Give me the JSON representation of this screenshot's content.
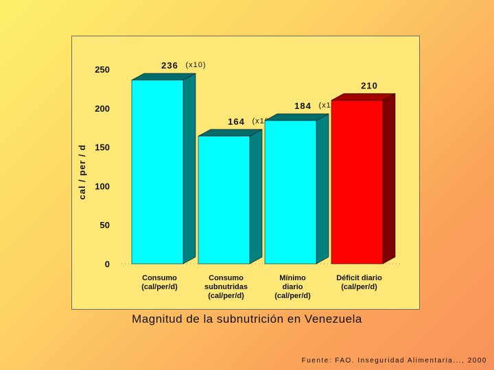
{
  "chart_data": {
    "type": "bar",
    "title": "Magnitud de la subnutrición en Venezuela",
    "ylabel": "cal / per / d",
    "xlabel": "",
    "ylim": [
      0,
      250
    ],
    "yticks": [
      "0",
      "50",
      "100",
      "150",
      "200",
      "250"
    ],
    "categories": [
      [
        "Consumo",
        "(cal/per/d)"
      ],
      [
        "Consumo",
        "subnutridas",
        "(cal/per/d)"
      ],
      [
        "Mínimo",
        "diario",
        "(cal/per/d)"
      ],
      [
        "Déficit diario",
        "(cal/per/d)"
      ]
    ],
    "values": [
      236,
      164,
      184,
      210
    ],
    "value_labels": [
      "236",
      "164",
      "184",
      "210"
    ],
    "value_suffixes": [
      "(x10)",
      "(x10)",
      "(x10)",
      ""
    ],
    "colors": [
      "#00ffff",
      "#00ffff",
      "#00ffff",
      "#ff0000"
    ],
    "side_colors": [
      "#008080",
      "#008080",
      "#008080",
      "#7f0000"
    ],
    "top_colors": [
      "#006c6c",
      "#006c6c",
      "#006c6c",
      "#a00000"
    ],
    "grid": false,
    "legend": "none"
  },
  "source": "Fuente: FAO. Inseguridad Alimentaria..., 2000"
}
